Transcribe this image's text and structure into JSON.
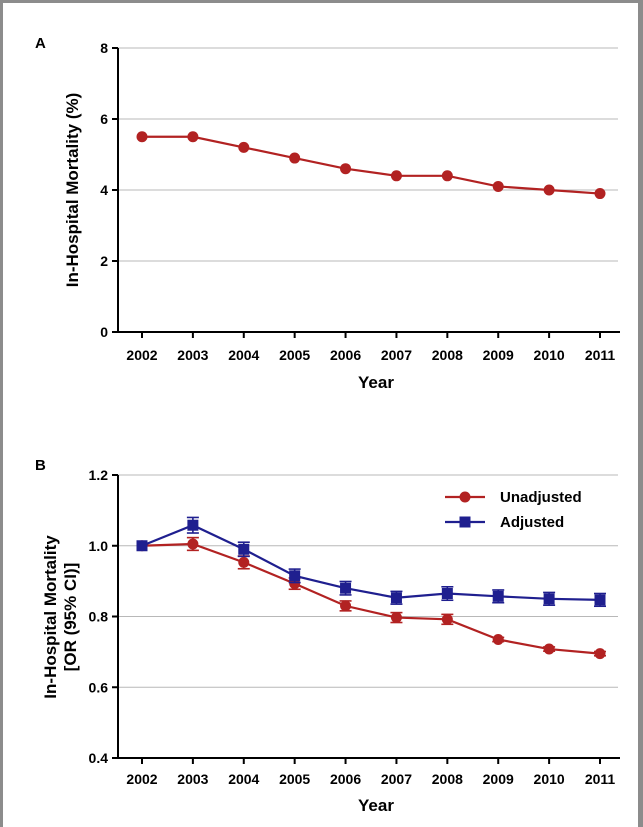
{
  "chart_data": [
    {
      "panel_label": "A",
      "type": "line",
      "categories": [
        "2002",
        "2003",
        "2004",
        "2005",
        "2006",
        "2007",
        "2008",
        "2009",
        "2010",
        "2011"
      ],
      "series": [
        {
          "values": [
            5.5,
            5.5,
            5.2,
            4.9,
            4.6,
            4.4,
            4.4,
            4.1,
            4.0,
            3.9
          ],
          "color": "#b22222",
          "marker": "circle"
        }
      ],
      "xlabel": "Year",
      "ylabel": "In-Hospital Mortality (%)",
      "ylim": [
        0,
        8
      ],
      "yticks": [
        "0",
        "2",
        "4",
        "6",
        "8"
      ],
      "grid": true
    },
    {
      "panel_label": "B",
      "type": "line",
      "categories": [
        "2002",
        "2003",
        "2004",
        "2005",
        "2006",
        "2007",
        "2008",
        "2009",
        "2010",
        "2011"
      ],
      "series": [
        {
          "name": "Unadjusted",
          "values": [
            1.0,
            1.005,
            0.953,
            0.893,
            0.83,
            0.797,
            0.792,
            0.735,
            0.708,
            0.695
          ],
          "errors": [
            0,
            0.018,
            0.018,
            0.016,
            0.014,
            0.014,
            0.014,
            0.006,
            0.006,
            0.006
          ],
          "color": "#b22222",
          "marker": "circle"
        },
        {
          "name": "Adjusted",
          "values": [
            1.0,
            1.058,
            0.99,
            0.915,
            0.88,
            0.853,
            0.865,
            0.857,
            0.85,
            0.847
          ],
          "errors": [
            0,
            0.022,
            0.02,
            0.019,
            0.019,
            0.018,
            0.019,
            0.018,
            0.018,
            0.018
          ],
          "color": "#1f1f8f",
          "marker": "square"
        }
      ],
      "xlabel": "Year",
      "ylabel": [
        "In-Hospital Mortality",
        "[OR (95% CI)]"
      ],
      "ylim": [
        0.4,
        1.2
      ],
      "yticks": [
        "0.4",
        "0.6",
        "0.8",
        "1.0",
        "1.2"
      ],
      "legend": "top-right",
      "grid": true
    }
  ]
}
